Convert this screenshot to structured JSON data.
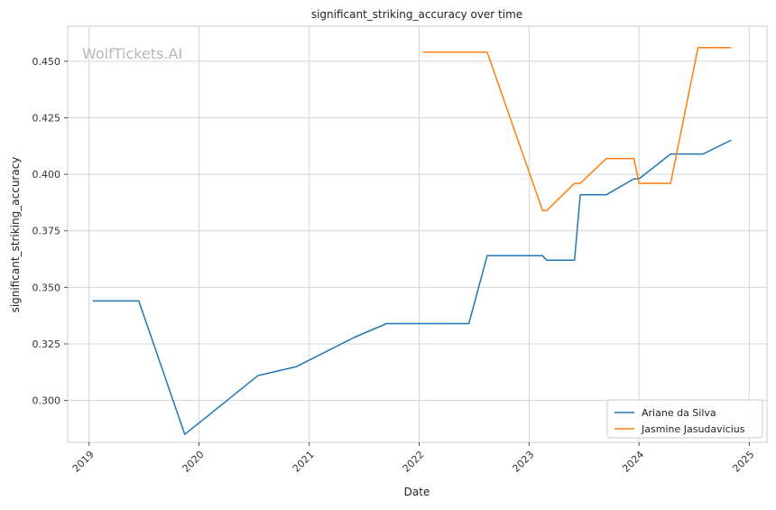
{
  "watermark": "WolfTickets.AI",
  "chart_data": {
    "type": "line",
    "title": "significant_striking_accuracy over time",
    "xlabel": "Date",
    "ylabel": "significant_striking_accuracy",
    "xlim": [
      "2018-10-22",
      "2025-03-01"
    ],
    "ylim": [
      0.2815,
      0.4655
    ],
    "x_ticks": [
      "2019-01-01",
      "2020-01-01",
      "2021-01-01",
      "2022-01-01",
      "2023-01-01",
      "2024-01-01",
      "2025-01-01"
    ],
    "x_tick_labels": [
      "2019",
      "2020",
      "2021",
      "2022",
      "2023",
      "2024",
      "2025"
    ],
    "y_ticks": [
      0.3,
      0.325,
      0.35,
      0.375,
      0.4,
      0.425,
      0.45
    ],
    "y_tick_labels": [
      "0.300",
      "0.325",
      "0.350",
      "0.375",
      "0.400",
      "0.425",
      "0.450"
    ],
    "grid": true,
    "legend_position": "lower-right",
    "series": [
      {
        "name": "Ariane da Silva",
        "color": "#1f77b4",
        "points": [
          [
            "2019-01-15",
            0.344
          ],
          [
            "2019-06-15",
            0.344
          ],
          [
            "2019-11-15",
            0.285
          ],
          [
            "2020-07-15",
            0.311
          ],
          [
            "2020-11-20",
            0.315
          ],
          [
            "2021-06-01",
            0.328
          ],
          [
            "2021-09-15",
            0.334
          ],
          [
            "2022-06-15",
            0.334
          ],
          [
            "2022-08-15",
            0.364
          ],
          [
            "2023-02-15",
            0.364
          ],
          [
            "2023-03-01",
            0.362
          ],
          [
            "2023-06-01",
            0.362
          ],
          [
            "2023-06-20",
            0.391
          ],
          [
            "2023-09-15",
            0.391
          ],
          [
            "2023-12-15",
            0.398
          ],
          [
            "2024-01-01",
            0.398
          ],
          [
            "2024-04-15",
            0.409
          ],
          [
            "2024-08-01",
            0.409
          ],
          [
            "2024-11-01",
            0.415
          ]
        ]
      },
      {
        "name": "Jasmine Jasudavicius",
        "color": "#ff7f0e",
        "points": [
          [
            "2022-01-15",
            0.454
          ],
          [
            "2022-08-15",
            0.454
          ],
          [
            "2023-02-15",
            0.384
          ],
          [
            "2023-03-01",
            0.384
          ],
          [
            "2023-06-01",
            0.396
          ],
          [
            "2023-06-20",
            0.396
          ],
          [
            "2023-09-15",
            0.407
          ],
          [
            "2023-12-15",
            0.407
          ],
          [
            "2024-01-01",
            0.396
          ],
          [
            "2024-04-15",
            0.396
          ],
          [
            "2024-07-15",
            0.456
          ],
          [
            "2024-11-01",
            0.456
          ]
        ]
      }
    ]
  }
}
